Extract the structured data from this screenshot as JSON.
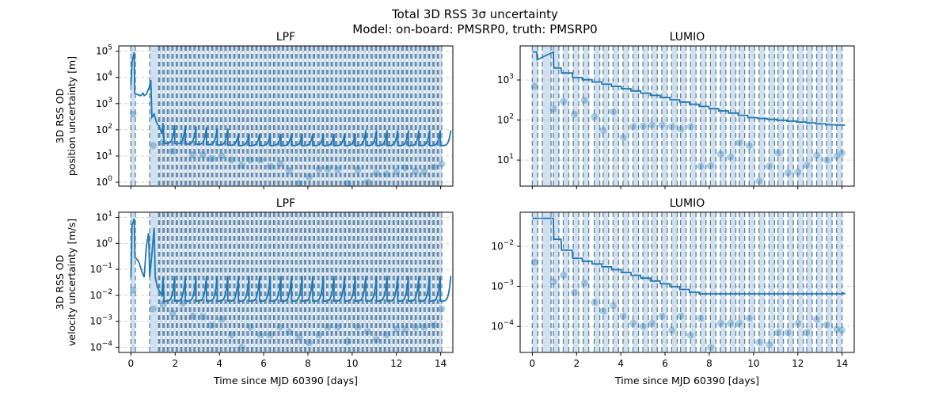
{
  "figure": {
    "title_line1": "Total 3D RSS 3σ uncertainty",
    "title_line2": "Model: on-board: PMSRP0, truth: PMSRP0"
  },
  "colors": {
    "line": "#1f77b4",
    "band": "#a9c9e2",
    "dashed": "#5f7fa0",
    "grid": "#d0d0d0"
  },
  "chart_data": [
    {
      "type": "line",
      "title": "LPF",
      "ylabel1": "3D RSS OD",
      "ylabel2": "position uncertainty [m]",
      "xlabel": "",
      "xlim": [
        -0.55,
        14.55
      ],
      "ylim_log10": [
        -0.15,
        5.2
      ],
      "yscale": "log",
      "xticks": [
        0,
        2,
        4,
        6,
        8,
        10,
        12,
        14
      ],
      "yticks": [
        {
          "v": 1,
          "e": "0"
        },
        {
          "v": 10,
          "e": "1"
        },
        {
          "v": 100,
          "e": "2"
        },
        {
          "v": 1000,
          "e": "3"
        },
        {
          "v": 10000,
          "e": "4"
        },
        {
          "v": 100000,
          "e": "5"
        }
      ],
      "bands": [
        [
          0,
          0.2
        ],
        [
          0.85,
          1.25
        ],
        [
          1.3,
          1.45
        ],
        [
          1.5,
          1.65
        ],
        [
          1.7,
          1.85
        ],
        [
          1.9,
          2.05
        ],
        [
          2.1,
          2.25
        ],
        [
          2.3,
          2.45
        ],
        [
          2.5,
          2.65
        ],
        [
          2.7,
          2.85
        ],
        [
          2.9,
          3.05
        ],
        [
          3.1,
          3.25
        ],
        [
          3.3,
          3.45
        ],
        [
          3.5,
          3.65
        ],
        [
          3.7,
          3.85
        ],
        [
          3.9,
          4.05
        ],
        [
          4.1,
          4.25
        ],
        [
          4.3,
          4.45
        ],
        [
          4.5,
          4.65
        ],
        [
          4.7,
          4.85
        ],
        [
          4.9,
          5.05
        ],
        [
          5.1,
          5.25
        ],
        [
          5.3,
          5.45
        ],
        [
          5.5,
          5.65
        ],
        [
          5.7,
          5.85
        ],
        [
          5.9,
          6.05
        ],
        [
          6.1,
          6.25
        ],
        [
          6.3,
          6.45
        ],
        [
          6.5,
          6.65
        ],
        [
          6.7,
          6.85
        ],
        [
          6.9,
          7.05
        ],
        [
          7.1,
          7.25
        ],
        [
          7.3,
          7.45
        ],
        [
          7.5,
          7.65
        ],
        [
          7.7,
          7.85
        ],
        [
          7.9,
          8.05
        ],
        [
          8.1,
          8.25
        ],
        [
          8.3,
          8.45
        ],
        [
          8.5,
          8.65
        ],
        [
          8.7,
          8.85
        ],
        [
          8.9,
          9.05
        ],
        [
          9.1,
          9.25
        ],
        [
          9.3,
          9.45
        ],
        [
          9.5,
          9.65
        ],
        [
          9.7,
          9.85
        ],
        [
          9.9,
          10.05
        ],
        [
          10.1,
          10.25
        ],
        [
          10.3,
          10.45
        ],
        [
          10.5,
          10.65
        ],
        [
          10.7,
          10.85
        ],
        [
          10.9,
          11.05
        ],
        [
          11.1,
          11.25
        ],
        [
          11.3,
          11.45
        ],
        [
          11.5,
          11.65
        ],
        [
          11.7,
          11.85
        ],
        [
          11.9,
          12.05
        ],
        [
          12.1,
          12.25
        ],
        [
          12.3,
          12.45
        ],
        [
          12.5,
          12.65
        ],
        [
          12.7,
          12.85
        ],
        [
          12.9,
          13.05
        ],
        [
          13.1,
          13.25
        ],
        [
          13.3,
          13.45
        ],
        [
          13.5,
          13.65
        ],
        [
          13.7,
          13.85
        ],
        [
          13.9,
          14.05
        ]
      ],
      "line_kind": "lpf_pos",
      "points": [
        [
          0.1,
          400
        ],
        [
          1.0,
          25
        ],
        [
          1.45,
          33
        ],
        [
          1.9,
          15
        ],
        [
          2.35,
          38
        ],
        [
          2.8,
          11
        ],
        [
          3.25,
          11
        ],
        [
          3.65,
          8
        ],
        [
          4.1,
          10
        ],
        [
          4.55,
          7
        ],
        [
          5.0,
          4.5
        ],
        [
          5.4,
          7
        ],
        [
          5.85,
          7
        ],
        [
          6.3,
          4
        ],
        [
          6.75,
          5
        ],
        [
          7.15,
          2.7
        ],
        [
          7.6,
          0.9
        ],
        [
          8.05,
          1.6
        ],
        [
          8.5,
          3.1
        ],
        [
          8.9,
          3.2
        ],
        [
          9.35,
          3
        ],
        [
          9.8,
          0.9
        ],
        [
          10.25,
          3
        ],
        [
          10.7,
          1
        ],
        [
          11.1,
          2.2
        ],
        [
          11.55,
          2.1
        ],
        [
          12.0,
          2.5
        ],
        [
          12.4,
          3.5
        ],
        [
          12.85,
          2.6
        ],
        [
          13.25,
          2.5
        ],
        [
          13.7,
          3.8
        ],
        [
          14.05,
          5
        ]
      ]
    },
    {
      "type": "line",
      "title": "LUMIO",
      "ylabel1": "",
      "ylabel2": "",
      "xlabel": "",
      "xlim": [
        -0.55,
        14.55
      ],
      "ylim_log10": [
        0.35,
        3.85
      ],
      "yscale": "log",
      "xticks": [
        0,
        2,
        4,
        6,
        8,
        10,
        12,
        14
      ],
      "yticks": [
        {
          "v": 10,
          "e": "1"
        },
        {
          "v": 100,
          "e": "2"
        },
        {
          "v": 1000,
          "e": "3"
        }
      ],
      "bands": [
        [
          0,
          0.25
        ],
        [
          0.45,
          0.85
        ],
        [
          0.95,
          1.2
        ],
        [
          1.4,
          1.65
        ],
        [
          1.85,
          2.1
        ],
        [
          2.3,
          2.55
        ],
        [
          2.8,
          3.05
        ],
        [
          3.2,
          3.45
        ],
        [
          3.65,
          3.9
        ],
        [
          4.1,
          4.35
        ],
        [
          4.55,
          4.8
        ],
        [
          5.0,
          5.25
        ],
        [
          5.4,
          5.65
        ],
        [
          5.85,
          6.1
        ],
        [
          6.3,
          6.55
        ],
        [
          6.7,
          6.95
        ],
        [
          7.15,
          7.4
        ],
        [
          7.6,
          7.85
        ],
        [
          8.05,
          8.3
        ],
        [
          8.5,
          8.75
        ],
        [
          8.95,
          9.2
        ],
        [
          9.35,
          9.6
        ],
        [
          9.8,
          10.05
        ],
        [
          10.25,
          10.5
        ],
        [
          10.7,
          10.95
        ],
        [
          11.1,
          11.35
        ],
        [
          11.55,
          11.8
        ],
        [
          12.0,
          12.25
        ],
        [
          12.4,
          12.65
        ],
        [
          12.85,
          13.1
        ],
        [
          13.3,
          13.55
        ],
        [
          13.75,
          14.0
        ]
      ],
      "line_kind": "lumio_pos",
      "points": [
        [
          0.1,
          700
        ],
        [
          0.95,
          190
        ],
        [
          1.4,
          290
        ],
        [
          1.9,
          140
        ],
        [
          2.35,
          310
        ],
        [
          2.8,
          120
        ],
        [
          3.2,
          55
        ],
        [
          3.65,
          160
        ],
        [
          4.55,
          68
        ],
        [
          4.1,
          37
        ],
        [
          5.0,
          70
        ],
        [
          5.4,
          75
        ],
        [
          5.85,
          75
        ],
        [
          6.3,
          68
        ],
        [
          6.7,
          60
        ],
        [
          7.15,
          68
        ],
        [
          7.6,
          7
        ],
        [
          8.05,
          7.2
        ],
        [
          8.5,
          14
        ],
        [
          8.95,
          12
        ],
        [
          9.35,
          27
        ],
        [
          9.8,
          23
        ],
        [
          10.25,
          3
        ],
        [
          10.7,
          7
        ],
        [
          11.1,
          15
        ],
        [
          11.55,
          4.8
        ],
        [
          12.0,
          5
        ],
        [
          12.4,
          7.5
        ],
        [
          12.85,
          13
        ],
        [
          13.3,
          10
        ],
        [
          13.75,
          12.5
        ],
        [
          14.0,
          15
        ]
      ]
    },
    {
      "type": "line",
      "title": "LPF",
      "ylabel1": "3D RSS OD",
      "ylabel2": "velocity uncertainty [m/s]",
      "xlabel": "Time since MJD 60390 [days]",
      "xlim": [
        -0.55,
        14.55
      ],
      "ylim_log10": [
        -4.2,
        1.2
      ],
      "yscale": "log",
      "xticks": [
        0,
        2,
        4,
        6,
        8,
        10,
        12,
        14
      ],
      "yticks": [
        {
          "v": 0.0001,
          "e": "-4"
        },
        {
          "v": 0.001,
          "e": "-3"
        },
        {
          "v": 0.01,
          "e": "-2"
        },
        {
          "v": 0.1,
          "e": "-1"
        },
        {
          "v": 1,
          "e": "0"
        },
        {
          "v": 10,
          "e": "1"
        }
      ],
      "bands": "same_as_0",
      "line_kind": "lpf_vel",
      "points": [
        [
          0.1,
          0.016
        ],
        [
          1.0,
          0.003
        ],
        [
          1.45,
          0.0045
        ],
        [
          1.9,
          0.002
        ],
        [
          2.35,
          0.005
        ],
        [
          2.8,
          0.0016
        ],
        [
          3.25,
          0.0015
        ],
        [
          3.65,
          0.0007
        ],
        [
          4.1,
          0.0012
        ],
        [
          4.55,
          0.0003
        ],
        [
          5.0,
          0.0001
        ],
        [
          5.4,
          0.0006
        ],
        [
          5.85,
          0.0003
        ],
        [
          6.3,
          0.0003
        ],
        [
          6.75,
          0.0006
        ],
        [
          7.15,
          0.0004
        ],
        [
          7.6,
          0.00025
        ],
        [
          8.05,
          0.00015
        ],
        [
          8.5,
          0.0003
        ],
        [
          8.9,
          0.0006
        ],
        [
          9.35,
          0.0006
        ],
        [
          9.8,
          0.00017
        ],
        [
          10.25,
          0.0006
        ],
        [
          10.7,
          0.0004
        ],
        [
          11.1,
          0.0002
        ],
        [
          11.55,
          0.0003
        ],
        [
          12.0,
          0.0005
        ],
        [
          12.4,
          0.0005
        ],
        [
          12.85,
          0.0006
        ],
        [
          13.25,
          0.0006
        ],
        [
          13.7,
          0.0007
        ],
        [
          14.05,
          0.003
        ]
      ]
    },
    {
      "type": "line",
      "title": "LUMIO",
      "ylabel1": "",
      "ylabel2": "",
      "xlabel": "Time since MJD 60390 [days]",
      "xlim": [
        -0.55,
        14.55
      ],
      "ylim_log10": [
        -4.65,
        -1.15
      ],
      "yscale": "log",
      "xticks": [
        0,
        2,
        4,
        6,
        8,
        10,
        12,
        14
      ],
      "yticks": [
        {
          "v": 0.0001,
          "e": "-4"
        },
        {
          "v": 0.001,
          "e": "-3"
        },
        {
          "v": 0.01,
          "e": "-2"
        }
      ],
      "bands": "same_as_1",
      "line_kind": "lumio_vel",
      "points": [
        [
          0.1,
          0.004
        ],
        [
          0.95,
          0.0013
        ],
        [
          1.4,
          0.0019
        ],
        [
          1.9,
          0.0007
        ],
        [
          2.35,
          0.0012
        ],
        [
          2.8,
          0.0004
        ],
        [
          3.2,
          0.00024
        ],
        [
          3.65,
          0.00033
        ],
        [
          4.1,
          0.00018
        ],
        [
          4.55,
          0.00012
        ],
        [
          5.0,
          0.0001
        ],
        [
          5.4,
          0.00012
        ],
        [
          5.85,
          0.00018
        ],
        [
          6.3,
          8e-05
        ],
        [
          6.7,
          0.00018
        ],
        [
          7.15,
          6e-05
        ],
        [
          7.6,
          0.00016
        ],
        [
          8.05,
          3e-05
        ],
        [
          8.5,
          0.00012
        ],
        [
          8.95,
          0.00012
        ],
        [
          9.35,
          0.00012
        ],
        [
          9.8,
          0.00016
        ],
        [
          10.25,
          4e-05
        ],
        [
          10.7,
          3.5e-05
        ],
        [
          11.1,
          7e-05
        ],
        [
          11.55,
          7e-05
        ],
        [
          12.0,
          0.00012
        ],
        [
          12.4,
          7e-05
        ],
        [
          12.85,
          0.00015
        ],
        [
          13.3,
          0.00011
        ],
        [
          13.75,
          8.5e-05
        ],
        [
          14.0,
          8e-05
        ]
      ]
    }
  ]
}
